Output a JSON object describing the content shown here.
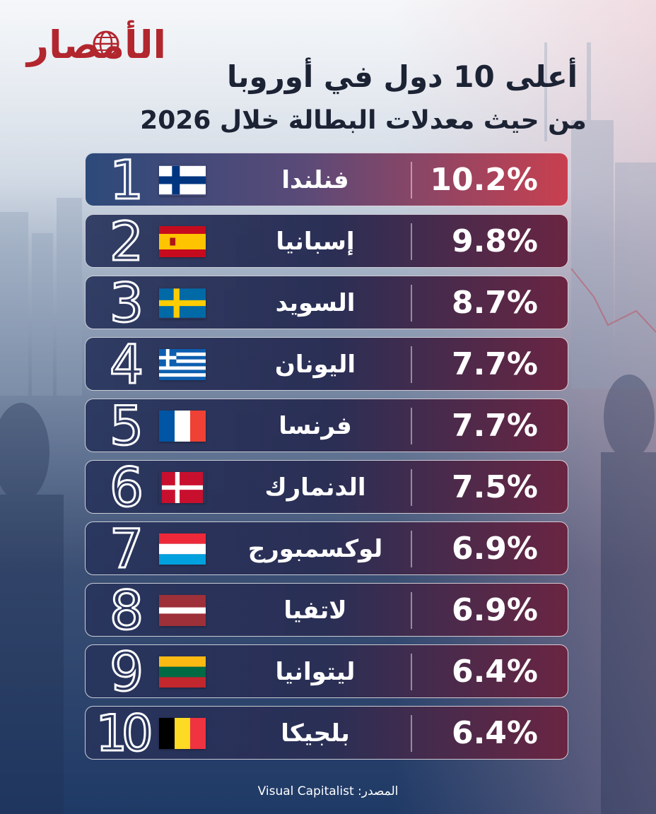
{
  "logo": {
    "text": "الأمصار"
  },
  "title": "أعلى 10 دول في أوروبا",
  "subtitle": "من حيث معدلات البطالة خلال 2026",
  "source": "المصدر: Visual Capitalist",
  "colors": {
    "top_row": "#c8404f",
    "row_base": "#2a2f55",
    "row_accent": "#6a2542"
  },
  "chart_data": {
    "type": "table",
    "title": "أعلى 10 دول في أوروبا",
    "subtitle": "من حيث معدلات البطالة خلال 2026",
    "columns": [
      "rank",
      "country",
      "rate"
    ],
    "rows": [
      {
        "rank": "1",
        "country": "فنلندا",
        "rate": "10.2%",
        "value": 10.2,
        "flag": "flag-finland"
      },
      {
        "rank": "2",
        "country": "إسبانيا",
        "rate": "9.8%",
        "value": 9.8,
        "flag": "flag-spain"
      },
      {
        "rank": "3",
        "country": "السويد",
        "rate": "8.7%",
        "value": 8.7,
        "flag": "flag-sweden"
      },
      {
        "rank": "4",
        "country": "اليونان",
        "rate": "7.7%",
        "value": 7.7,
        "flag": "flag-greece"
      },
      {
        "rank": "5",
        "country": "فرنسا",
        "rate": "7.7%",
        "value": 7.7,
        "flag": "flag-france"
      },
      {
        "rank": "6",
        "country": "الدنمارك",
        "rate": "7.5%",
        "value": 7.5,
        "flag": "flag-denmark"
      },
      {
        "rank": "7",
        "country": "لوكسمبورج",
        "rate": "6.9%",
        "value": 6.9,
        "flag": "flag-luxembourg"
      },
      {
        "rank": "8",
        "country": "لاتفيا",
        "rate": "6.9%",
        "value": 6.9,
        "flag": "flag-latvia"
      },
      {
        "rank": "9",
        "country": "ليتوانيا",
        "rate": "6.4%",
        "value": 6.4,
        "flag": "flag-lithuania"
      },
      {
        "rank": "10",
        "country": "بلجيكا",
        "rate": "6.4%",
        "value": 6.4,
        "flag": "flag-belgium"
      }
    ]
  }
}
